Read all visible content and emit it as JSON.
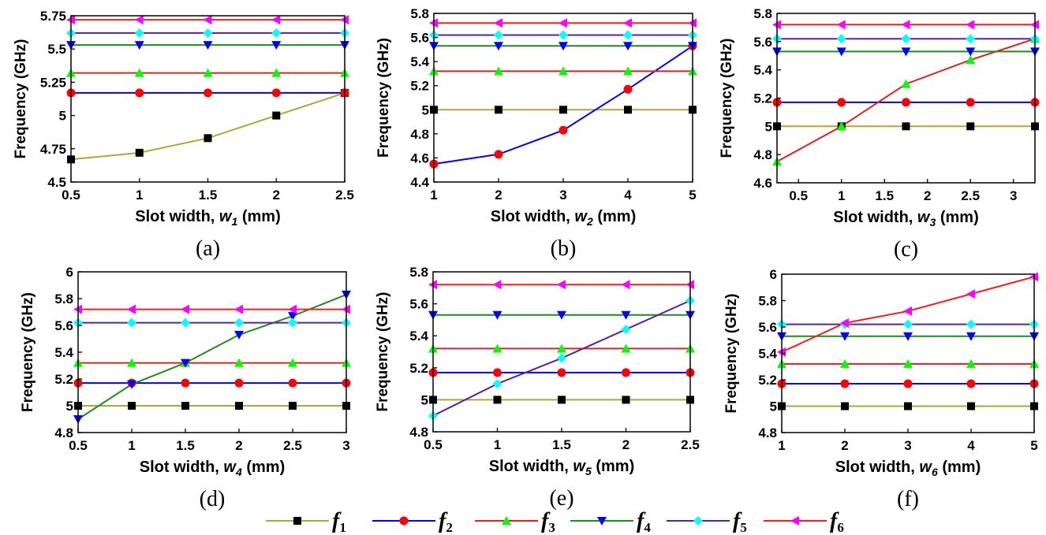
{
  "legend": [
    {
      "name": "f",
      "sub": "1",
      "color": "#b5a531",
      "marker": "square",
      "markerColor": "#000000"
    },
    {
      "name": "f",
      "sub": "2",
      "color": "#0000ff",
      "marker": "circle",
      "markerColor": "#ff0000"
    },
    {
      "name": "f",
      "sub": "3",
      "color": "#e0201c",
      "marker": "triangle-up",
      "markerColor": "#00ff00"
    },
    {
      "name": "f",
      "sub": "4",
      "color": "#1e8c1e",
      "marker": "triangle-down",
      "markerColor": "#0000ff"
    },
    {
      "name": "f",
      "sub": "5",
      "color": "#5a20a0",
      "marker": "diamond",
      "markerColor": "#00ffff"
    },
    {
      "name": "f",
      "sub": "6",
      "color": "#ff1a1a",
      "marker": "triangle-left",
      "markerColor": "#ff00ff"
    }
  ],
  "chart_data": [
    {
      "type": "line",
      "caption": "(a)",
      "ylabel": "Frequency (GHz)",
      "xlabel_prefix": "Slot width,  ",
      "xlabel_var": "w",
      "xlabel_sub": "1",
      "xlabel_suffix": " (mm)",
      "xlim": [
        0.5,
        2.5
      ],
      "ylim": [
        4.5,
        5.75
      ],
      "xticks": [
        0.5,
        1,
        1.5,
        2,
        2.5
      ],
      "yticks": [
        4.5,
        4.75,
        5,
        5.25,
        5.5,
        5.75
      ],
      "xticklabels": [
        "0.5",
        "1",
        "1.5",
        "2",
        "2.5"
      ],
      "yticklabels": [
        "4.5",
        "4.75",
        "5",
        "5.25",
        "5.5",
        "5.75"
      ],
      "x": [
        0.5,
        1,
        1.5,
        2,
        2.5
      ],
      "series": [
        {
          "values": [
            4.67,
            4.72,
            4.83,
            5.0,
            5.17
          ]
        },
        {
          "values": [
            5.17,
            5.17,
            5.17,
            5.17,
            5.17
          ]
        },
        {
          "values": [
            5.32,
            5.32,
            5.32,
            5.32,
            5.32
          ]
        },
        {
          "values": [
            5.53,
            5.53,
            5.53,
            5.53,
            5.53
          ]
        },
        {
          "values": [
            5.62,
            5.62,
            5.62,
            5.62,
            5.62
          ]
        },
        {
          "values": [
            5.72,
            5.72,
            5.72,
            5.72,
            5.72
          ]
        }
      ]
    },
    {
      "type": "line",
      "caption": "(b)",
      "ylabel": "Frequency (GHz)",
      "xlabel_prefix": "Slot width,  ",
      "xlabel_var": "w",
      "xlabel_sub": "2",
      "xlabel_suffix": " (mm)",
      "xlim": [
        1,
        5
      ],
      "ylim": [
        4.4,
        5.8
      ],
      "xticks": [
        1,
        2,
        3,
        4,
        5
      ],
      "yticks": [
        4.4,
        4.6,
        4.8,
        5.0,
        5.2,
        5.4,
        5.6,
        5.8
      ],
      "xticklabels": [
        "1",
        "2",
        "3",
        "4",
        "5"
      ],
      "yticklabels": [
        "4.4",
        "4.6",
        "4.8",
        "5",
        "5.2",
        "5.4",
        "5.6",
        "5.8"
      ],
      "x": [
        1,
        2,
        3,
        4,
        5
      ],
      "series": [
        {
          "values": [
            5.0,
            5.0,
            5.0,
            5.0,
            5.0
          ]
        },
        {
          "values": [
            4.55,
            4.63,
            4.83,
            5.17,
            5.53
          ]
        },
        {
          "values": [
            5.32,
            5.32,
            5.32,
            5.32,
            5.32
          ]
        },
        {
          "values": [
            5.53,
            5.53,
            5.53,
            5.53,
            5.53
          ]
        },
        {
          "values": [
            5.62,
            5.62,
            5.62,
            5.62,
            5.62
          ]
        },
        {
          "values": [
            5.72,
            5.72,
            5.72,
            5.72,
            5.72
          ]
        }
      ]
    },
    {
      "type": "line",
      "caption": "(c)",
      "ylabel": "Frequency (GHz)",
      "xlabel_prefix": "Slot width,  ",
      "xlabel_var": "w",
      "xlabel_sub": "3",
      "xlabel_suffix": " (mm)",
      "xlim": [
        0.25,
        3.25
      ],
      "ylim": [
        4.6,
        5.8
      ],
      "xticks": [
        0.5,
        1,
        1.5,
        2,
        2.5,
        3
      ],
      "yticks": [
        4.6,
        4.8,
        5.0,
        5.2,
        5.4,
        5.6,
        5.8
      ],
      "xticklabels": [
        "0.5",
        "1",
        "1.5",
        "2",
        "2.5",
        "3"
      ],
      "yticklabels": [
        "4.6",
        "4.8",
        "5",
        "5.2",
        "5.4",
        "5.6",
        "5.8"
      ],
      "x": [
        0.25,
        1,
        1.75,
        2.5,
        3.25
      ],
      "series": [
        {
          "values": [
            5.0,
            5.0,
            5.0,
            5.0,
            5.0
          ]
        },
        {
          "values": [
            5.17,
            5.17,
            5.17,
            5.17,
            5.17
          ]
        },
        {
          "values": [
            4.75,
            5.0,
            5.3,
            5.47,
            5.62
          ]
        },
        {
          "values": [
            5.53,
            5.53,
            5.53,
            5.53,
            5.53
          ]
        },
        {
          "values": [
            5.62,
            5.62,
            5.62,
            5.62,
            5.62
          ]
        },
        {
          "values": [
            5.72,
            5.72,
            5.72,
            5.72,
            5.72
          ]
        }
      ]
    },
    {
      "type": "line",
      "caption": "(d)",
      "ylabel": "Frequency (GHz)",
      "xlabel_prefix": "Slot width,  ",
      "xlabel_var": "w",
      "xlabel_sub": "4",
      "xlabel_suffix": " (mm)",
      "xlim": [
        0.5,
        3
      ],
      "ylim": [
        4.8,
        6.0
      ],
      "xticks": [
        0.5,
        1,
        1.5,
        2,
        2.5,
        3
      ],
      "yticks": [
        4.8,
        5.0,
        5.2,
        5.4,
        5.6,
        5.8,
        6.0
      ],
      "xticklabels": [
        "0.5",
        "1",
        "1.5",
        "2",
        "2.5",
        "3"
      ],
      "yticklabels": [
        "4.8",
        "5",
        "5.2",
        "5.4",
        "5.6",
        "5.8",
        "6"
      ],
      "x": [
        0.5,
        1,
        1.5,
        2,
        2.5,
        3
      ],
      "series": [
        {
          "values": [
            5.0,
            5.0,
            5.0,
            5.0,
            5.0,
            5.0
          ]
        },
        {
          "values": [
            5.17,
            5.17,
            5.17,
            5.17,
            5.17,
            5.17
          ]
        },
        {
          "values": [
            5.32,
            5.32,
            5.32,
            5.32,
            5.32,
            5.32
          ]
        },
        {
          "values": [
            4.9,
            5.16,
            5.32,
            5.53,
            5.67,
            5.83
          ]
        },
        {
          "values": [
            5.62,
            5.62,
            5.62,
            5.62,
            5.62,
            5.62
          ]
        },
        {
          "values": [
            5.72,
            5.72,
            5.72,
            5.72,
            5.72,
            5.72
          ]
        }
      ]
    },
    {
      "type": "line",
      "caption": "(e)",
      "ylabel": "Frequency (GHz)",
      "xlabel_prefix": "Slot width,  ",
      "xlabel_var": "w",
      "xlabel_sub": "5",
      "xlabel_suffix": " (mm)",
      "xlim": [
        0.5,
        2.5
      ],
      "ylim": [
        4.8,
        5.8
      ],
      "xticks": [
        0.5,
        1,
        1.5,
        2,
        2.5
      ],
      "yticks": [
        4.8,
        5.0,
        5.2,
        5.4,
        5.6,
        5.8
      ],
      "xticklabels": [
        "0.5",
        "1",
        "1.5",
        "2",
        "2.5"
      ],
      "yticklabels": [
        "4.8",
        "5",
        "5.2",
        "5.4",
        "5.6",
        "5.8"
      ],
      "x": [
        0.5,
        1,
        1.5,
        2,
        2.5
      ],
      "series": [
        {
          "values": [
            5.0,
            5.0,
            5.0,
            5.0,
            5.0
          ]
        },
        {
          "values": [
            5.17,
            5.17,
            5.17,
            5.17,
            5.17
          ]
        },
        {
          "values": [
            5.32,
            5.32,
            5.32,
            5.32,
            5.32
          ]
        },
        {
          "values": [
            5.53,
            5.53,
            5.53,
            5.53,
            5.53
          ]
        },
        {
          "values": [
            4.9,
            5.1,
            5.26,
            5.44,
            5.62
          ]
        },
        {
          "values": [
            5.72,
            5.72,
            5.72,
            5.72,
            5.72
          ]
        }
      ]
    },
    {
      "type": "line",
      "caption": "(f)",
      "ylabel": "Frequency (GHz)",
      "xlabel_prefix": "Slot width,  ",
      "xlabel_var": "w",
      "xlabel_sub": "6",
      "xlabel_suffix": " (mm)",
      "xlim": [
        1,
        5
      ],
      "ylim": [
        4.8,
        6.0
      ],
      "xticks": [
        1,
        2,
        3,
        4,
        5
      ],
      "yticks": [
        4.8,
        5.0,
        5.2,
        5.4,
        5.6,
        5.8,
        6.0
      ],
      "xticklabels": [
        "1",
        "2",
        "3",
        "4",
        "5"
      ],
      "yticklabels": [
        "4.8",
        "5",
        "5.2",
        "5.4",
        "5.6",
        "5.8",
        "6"
      ],
      "x": [
        1,
        2,
        3,
        4,
        5
      ],
      "series": [
        {
          "values": [
            5.0,
            5.0,
            5.0,
            5.0,
            5.0
          ]
        },
        {
          "values": [
            5.17,
            5.17,
            5.17,
            5.17,
            5.17
          ]
        },
        {
          "values": [
            5.32,
            5.32,
            5.32,
            5.32,
            5.32
          ]
        },
        {
          "values": [
            5.53,
            5.53,
            5.53,
            5.53,
            5.53
          ]
        },
        {
          "values": [
            5.62,
            5.62,
            5.62,
            5.62,
            5.62
          ]
        },
        {
          "values": [
            5.41,
            5.63,
            5.72,
            5.85,
            5.98
          ]
        }
      ]
    }
  ]
}
